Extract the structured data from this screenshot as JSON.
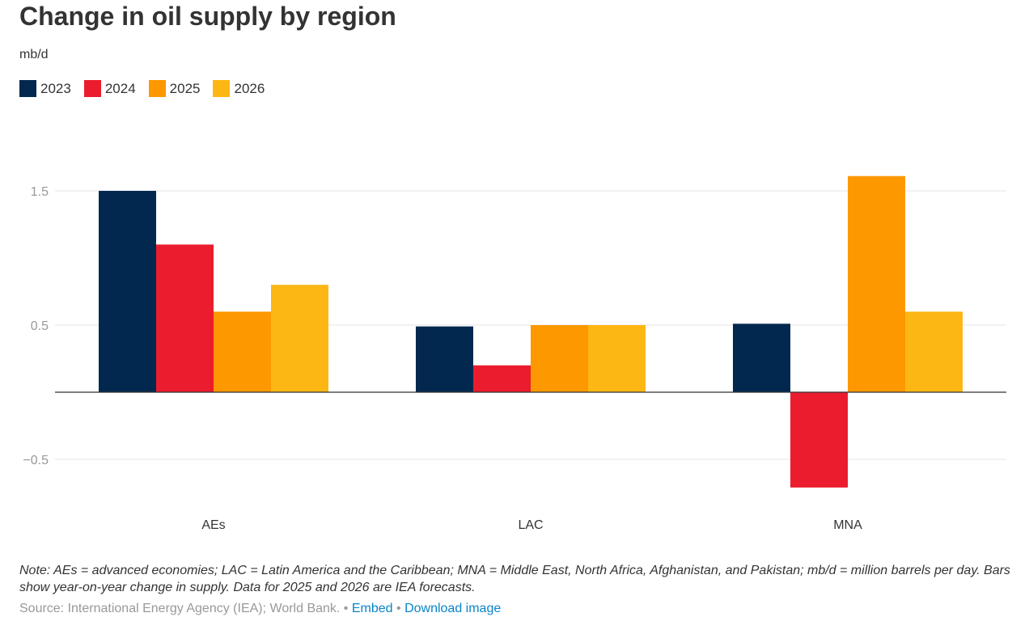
{
  "header": {
    "title": "Change in oil supply by region",
    "unit": "mb/d"
  },
  "legend": [
    {
      "label": "2023",
      "color": "#02284f"
    },
    {
      "label": "2024",
      "color": "#eb1c2d"
    },
    {
      "label": "2025",
      "color": "#fd9800"
    },
    {
      "label": "2026",
      "color": "#fdb714"
    }
  ],
  "chart_data": {
    "type": "bar",
    "title": "Change in oil supply by region",
    "ylabel": "mb/d",
    "xlabel": "",
    "categories": [
      "AEs",
      "LAC",
      "MNA"
    ],
    "series": [
      {
        "name": "2023",
        "color": "#02284f",
        "values": [
          1.5,
          0.49,
          0.51
        ]
      },
      {
        "name": "2024",
        "color": "#eb1c2d",
        "values": [
          1.1,
          0.2,
          -0.71
        ]
      },
      {
        "name": "2025",
        "color": "#fd9800",
        "values": [
          0.6,
          0.5,
          1.61
        ]
      },
      {
        "name": "2026",
        "color": "#fdb714",
        "values": [
          0.8,
          0.5,
          0.6
        ]
      }
    ],
    "yticks": [
      -0.5,
      0.5,
      1.5
    ],
    "ytick_labels": [
      "−0.5",
      "0.5",
      "1.5"
    ],
    "ylim": [
      -0.95,
      1.8
    ],
    "grid": true,
    "legend_position": "top-left"
  },
  "footer": {
    "note": "Note: AEs = advanced economies; LAC = Latin America and the Caribbean; MNA = Middle East, North Africa, Afghanistan, and Pakistan; mb/d = million barrels per day. Bars show year-on-year change in supply. Data for 2025 and 2026 are IEA forecasts.",
    "source": "Source: International Energy Agency (IEA); World Bank.",
    "separator": " • ",
    "embed_label": "Embed",
    "download_label": "Download image"
  }
}
